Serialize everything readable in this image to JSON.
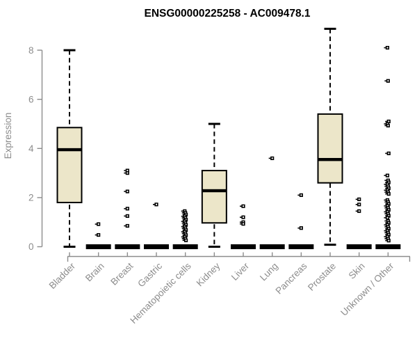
{
  "chart_data": {
    "type": "boxplot",
    "title": "ENSG00000225258 - AC009478.1",
    "ylabel": "Expression",
    "xlabel": "",
    "yticks": [
      0,
      2,
      4,
      6,
      8
    ],
    "ylim": [
      0,
      8.9
    ],
    "grid": false,
    "legend": "none",
    "colors": {
      "axis": "#8c8c8c",
      "tick_text": "#8c8c8c",
      "title_text": "#000000",
      "box_fill": "#ece6c9",
      "box_edge": "#000000",
      "outlier": "#000000"
    },
    "categories": [
      {
        "label": "Bladder",
        "box": {
          "whisker_low": 0.0,
          "q1": 1.8,
          "median": 3.95,
          "q3": 4.85,
          "whisker_high": 8.0
        },
        "outliers": []
      },
      {
        "label": "Brain",
        "box": {
          "whisker_low": 0,
          "q1": 0,
          "median": 0,
          "q3": 0,
          "whisker_high": 0
        },
        "outliers": [
          0.92,
          0.48
        ]
      },
      {
        "label": "Breast",
        "box": {
          "whisker_low": 0,
          "q1": 0,
          "median": 0,
          "q3": 0,
          "whisker_high": 0
        },
        "outliers": [
          3.1,
          3.0,
          2.25,
          1.55,
          1.25,
          0.85
        ]
      },
      {
        "label": "Gastric",
        "box": {
          "whisker_low": 0,
          "q1": 0,
          "median": 0,
          "q3": 0,
          "whisker_high": 0
        },
        "outliers": [
          1.72
        ]
      },
      {
        "label": "Hematopoietic cells",
        "box": {
          "whisker_low": 0,
          "q1": 0,
          "median": 0,
          "q3": 0,
          "whisker_high": 0
        },
        "outliers": [
          1.45,
          1.38,
          1.31,
          1.24,
          1.17,
          1.1,
          1.03,
          0.96,
          0.89,
          0.82,
          0.75,
          0.68,
          0.61,
          0.54,
          0.47,
          0.4,
          0.33,
          0.26
        ]
      },
      {
        "label": "Kidney",
        "box": {
          "whisker_low": 0.0,
          "q1": 0.97,
          "median": 2.28,
          "q3": 3.1,
          "whisker_high": 5.0
        },
        "outliers": []
      },
      {
        "label": "Liver",
        "box": {
          "whisker_low": 0,
          "q1": 0,
          "median": 0,
          "q3": 0,
          "whisker_high": 0
        },
        "outliers": [
          1.65,
          1.2,
          1.0,
          0.93
        ]
      },
      {
        "label": "Lung",
        "box": {
          "whisker_low": 0,
          "q1": 0,
          "median": 0,
          "q3": 0,
          "whisker_high": 0
        },
        "outliers": [
          3.6
        ]
      },
      {
        "label": "Pancreas",
        "box": {
          "whisker_low": 0,
          "q1": 0,
          "median": 0,
          "q3": 0,
          "whisker_high": 0
        },
        "outliers": [
          2.1,
          0.76
        ]
      },
      {
        "label": "Prostate",
        "box": {
          "whisker_low": 0.08,
          "q1": 2.6,
          "median": 3.55,
          "q3": 5.4,
          "whisker_high": 8.87
        },
        "outliers": []
      },
      {
        "label": "Skin",
        "box": {
          "whisker_low": 0,
          "q1": 0,
          "median": 0,
          "q3": 0,
          "whisker_high": 0
        },
        "outliers": [
          1.93,
          1.72,
          1.45
        ]
      },
      {
        "label": "Unknown / Other",
        "box": {
          "whisker_low": 0,
          "q1": 0,
          "median": 0,
          "q3": 0,
          "whisker_high": 0
        },
        "outliers": [
          8.1,
          6.75,
          5.1,
          5.0,
          4.93,
          3.8,
          2.9,
          2.7,
          2.62,
          2.54,
          2.46,
          2.38,
          2.3,
          2.22,
          2.15,
          1.9,
          1.82,
          1.74,
          1.66,
          1.58,
          1.5,
          1.42,
          1.34,
          1.26,
          1.18,
          1.05,
          0.97,
          0.89,
          0.81,
          0.73,
          0.65,
          0.57,
          0.49,
          0.41,
          0.33,
          0.25
        ]
      }
    ]
  }
}
